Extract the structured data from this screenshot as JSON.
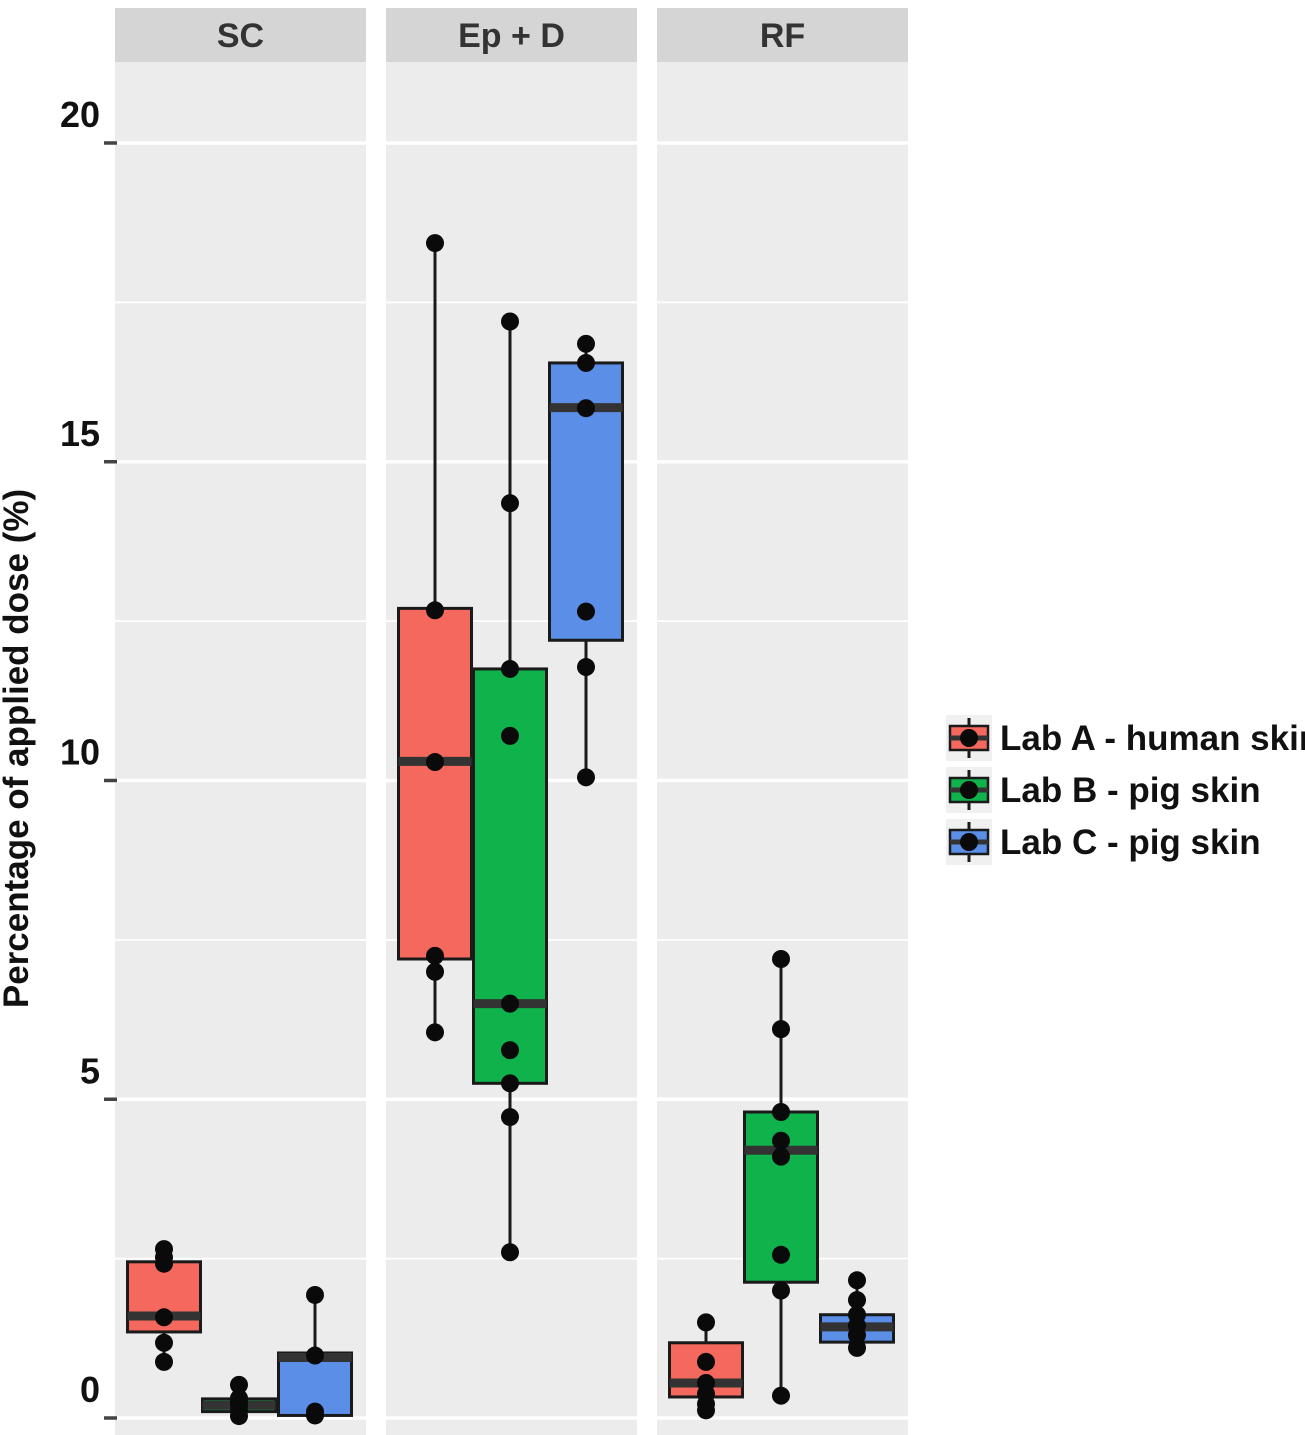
{
  "figure": {
    "ylabel": "Percentage of applied dose (%)"
  },
  "legend": {
    "entries": [
      {
        "label": "Lab A - human skin",
        "color": "#F4685E"
      },
      {
        "label": "Lab B - pig skin",
        "color": "#10B24C"
      },
      {
        "label": "Lab C - pig skin",
        "color": "#5B8EE6"
      }
    ]
  },
  "chart_data": {
    "type": "boxplot",
    "title": "",
    "ylabel": "Percentage of applied dose (%)",
    "xlabel": "",
    "ylim": [
      -0.3,
      21.3
    ],
    "y_major_ticks": [
      0,
      5,
      10,
      15,
      20
    ],
    "y_minor_ticks": [
      2.5,
      7.5,
      12.5,
      17.5
    ],
    "grid": "white-on-gray",
    "legend_position": "right",
    "facets": [
      "SC",
      "Ep + D",
      "RF"
    ],
    "style": {
      "panel_bg": "#ECECEC",
      "strip_bg": "#D5D5D5",
      "grid_color": "#FFFFFF",
      "box_stroke": "#1A1A1A",
      "median_color": "#333333",
      "point_color": "#0A0A0A",
      "legend_key_bg": "#F0F0F0"
    },
    "series": [
      {
        "name": "Lab A - human skin",
        "color": "#F4685E",
        "boxes": [
          {
            "facet": "SC",
            "whisker_low": 0.88,
            "q1": 1.35,
            "median": 1.6,
            "q3": 2.45,
            "whisker_high": 2.65,
            "points": [
              2.65,
              2.52,
              2.42,
              1.58,
              1.18,
              0.88
            ]
          },
          {
            "facet": "Ep + D",
            "whisker_low": 6.05,
            "q1": 7.2,
            "median": 10.3,
            "q3": 12.7,
            "whisker_high": 18.43,
            "points": [
              18.43,
              12.67,
              10.29,
              7.25,
              7.0,
              6.05
            ]
          },
          {
            "facet": "RF",
            "whisker_low": 0.12,
            "q1": 0.33,
            "median": 0.55,
            "q3": 1.18,
            "whisker_high": 1.5,
            "points": [
              1.5,
              0.88,
              0.55,
              0.38,
              0.22,
              0.12
            ]
          }
        ]
      },
      {
        "name": "Lab B - pig skin",
        "color": "#10B24C",
        "boxes": [
          {
            "facet": "SC",
            "whisker_low": 0.03,
            "q1": 0.1,
            "median": 0.2,
            "q3": 0.3,
            "whisker_high": 0.52,
            "points": [
              0.52,
              0.31,
              0.25,
              0.2,
              0.11,
              0.03
            ]
          },
          {
            "facet": "Ep + D",
            "whisker_low": 2.6,
            "q1": 5.25,
            "median": 6.5,
            "q3": 11.75,
            "whisker_high": 17.2,
            "points": [
              17.2,
              14.35,
              11.75,
              10.7,
              6.5,
              5.77,
              5.25,
              4.72,
              2.6
            ]
          },
          {
            "facet": "RF",
            "whisker_low": 0.35,
            "q1": 2.13,
            "median": 4.2,
            "q3": 4.8,
            "whisker_high": 7.2,
            "points": [
              7.2,
              6.1,
              4.8,
              4.35,
              4.1,
              2.56,
              2.0,
              0.35
            ]
          }
        ]
      },
      {
        "name": "Lab C - pig skin",
        "color": "#5B8EE6",
        "boxes": [
          {
            "facet": "SC",
            "whisker_low": 0.02,
            "q1": 0.04,
            "median": 0.95,
            "q3": 1.02,
            "whisker_high": 1.93,
            "points": [
              1.93,
              0.98,
              0.1,
              0.04
            ]
          },
          {
            "facet": "Ep + D",
            "whisker_low": 10.05,
            "q1": 12.2,
            "median": 15.85,
            "q3": 16.55,
            "whisker_high": 16.85,
            "points": [
              16.85,
              16.55,
              15.84,
              12.65,
              11.78,
              10.05
            ]
          },
          {
            "facet": "RF",
            "whisker_low": 1.04,
            "q1": 1.19,
            "median": 1.43,
            "q3": 1.62,
            "whisker_high": 2.16,
            "points": [
              2.16,
              1.85,
              1.62,
              1.45,
              1.3,
              1.1
            ]
          }
        ]
      }
    ]
  }
}
